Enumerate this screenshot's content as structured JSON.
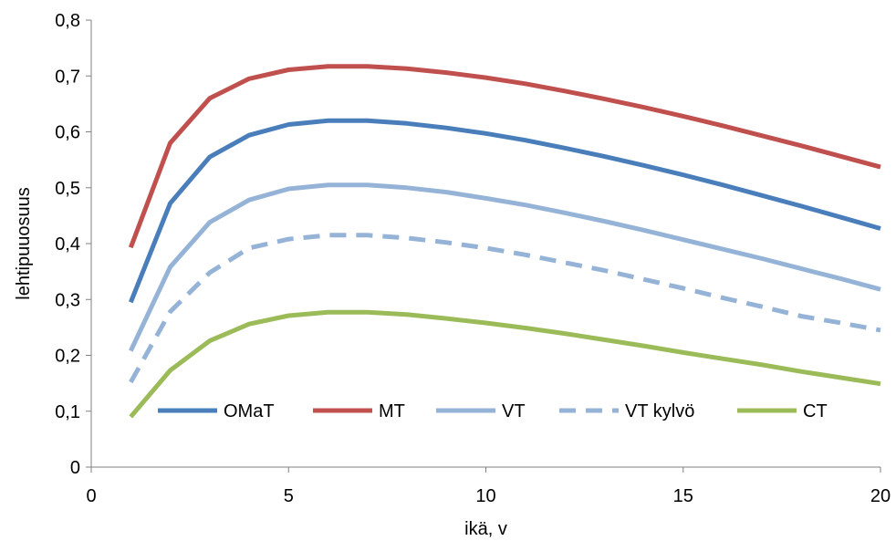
{
  "chart_data": {
    "type": "line",
    "title": "",
    "xlabel": "ikä, v",
    "ylabel": "lehtipuuosuus",
    "xlim": [
      0,
      20
    ],
    "ylim": [
      0,
      0.8
    ],
    "xticks": [
      0,
      5,
      10,
      15,
      20
    ],
    "xtick_labels": [
      "0",
      "5",
      "10",
      "15",
      "20"
    ],
    "yticks": [
      0,
      0.1,
      0.2,
      0.3,
      0.4,
      0.5,
      0.6,
      0.7,
      0.8
    ],
    "ytick_labels": [
      "0",
      "0,1",
      "0,2",
      "0,3",
      "0,4",
      "0,5",
      "0,6",
      "0,7",
      "0,8"
    ],
    "grid": false,
    "legend_position": "bottom-inside",
    "x": [
      1,
      2,
      3,
      4,
      5,
      6,
      7,
      8,
      9,
      10,
      11,
      12,
      13,
      14,
      15,
      16,
      17,
      18,
      19,
      20
    ],
    "series": [
      {
        "name": "OMaT",
        "color": "#4a7ebb",
        "dash": "solid",
        "values": [
          0.295,
          0.472,
          0.555,
          0.594,
          0.613,
          0.62,
          0.62,
          0.615,
          0.607,
          0.597,
          0.585,
          0.571,
          0.556,
          0.54,
          0.523,
          0.505,
          0.486,
          0.467,
          0.447,
          0.427
        ]
      },
      {
        "name": "MT",
        "color": "#c0504d",
        "dash": "solid",
        "values": [
          0.393,
          0.58,
          0.66,
          0.695,
          0.711,
          0.717,
          0.717,
          0.713,
          0.706,
          0.697,
          0.686,
          0.673,
          0.659,
          0.644,
          0.628,
          0.611,
          0.593,
          0.575,
          0.556,
          0.537
        ]
      },
      {
        "name": "VT",
        "color": "#95b3d7",
        "dash": "solid",
        "values": [
          0.208,
          0.358,
          0.438,
          0.478,
          0.498,
          0.505,
          0.505,
          0.5,
          0.492,
          0.481,
          0.469,
          0.455,
          0.44,
          0.424,
          0.407,
          0.39,
          0.373,
          0.355,
          0.337,
          0.318
        ]
      },
      {
        "name": "VT kylvö",
        "color": "#95b3d7",
        "dash": "dashed",
        "values": [
          0.152,
          0.278,
          0.348,
          0.392,
          0.408,
          0.415,
          0.415,
          0.41,
          0.402,
          0.392,
          0.38,
          0.366,
          0.352,
          0.336,
          0.32,
          0.303,
          0.287,
          0.27,
          0.258,
          0.245
        ]
      },
      {
        "name": "CT",
        "color": "#9bbb59",
        "dash": "solid",
        "values": [
          0.09,
          0.173,
          0.226,
          0.256,
          0.271,
          0.277,
          0.277,
          0.273,
          0.266,
          0.258,
          0.249,
          0.239,
          0.228,
          0.217,
          0.205,
          0.194,
          0.183,
          0.171,
          0.16,
          0.149
        ]
      }
    ]
  }
}
